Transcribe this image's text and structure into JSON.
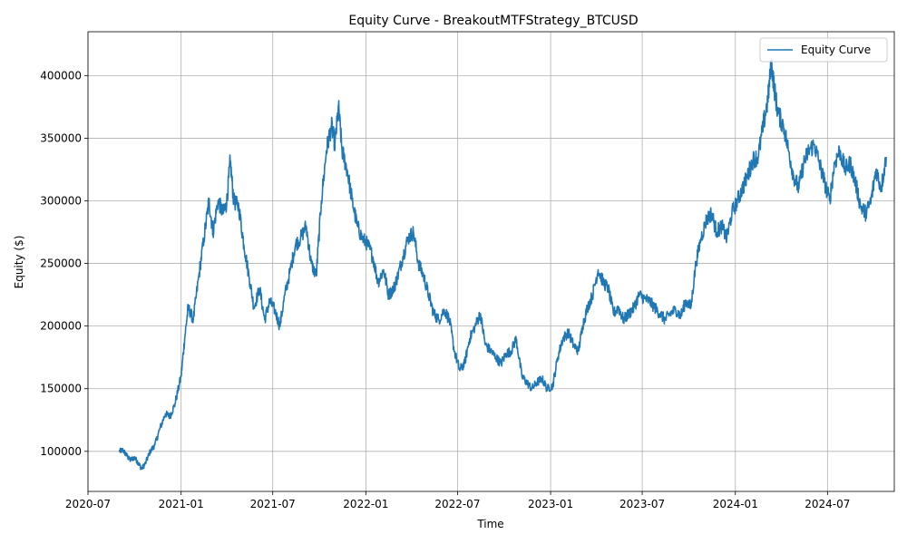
{
  "chart_data": {
    "type": "line",
    "title": "Equity Curve - BreakoutMTFStrategy_BTCUSD",
    "xlabel": "Time",
    "ylabel": "Equity ($)",
    "x_axis_type": "date",
    "xlim": [
      "2020-07-01",
      "2024-11-10"
    ],
    "ylim": [
      68000,
      435000
    ],
    "x_ticks": [
      "2020-07",
      "2021-01",
      "2021-07",
      "2022-01",
      "2022-07",
      "2023-01",
      "2023-07",
      "2024-01",
      "2024-07"
    ],
    "y_ticks": [
      100000,
      150000,
      200000,
      250000,
      300000,
      350000,
      400000
    ],
    "y_tick_labels": [
      "100000",
      "150000",
      "200000",
      "250000",
      "300000",
      "350000",
      "400000"
    ],
    "grid": true,
    "legend": "top-right",
    "colors": {
      "series": "#1f77b4",
      "grid": "#b0b0b0",
      "frame": "#000000"
    },
    "series": [
      {
        "name": "Equity Curve",
        "x": [
          "2020-09-01",
          "2020-09-08",
          "2020-09-15",
          "2020-09-22",
          "2020-10-01",
          "2020-10-08",
          "2020-10-15",
          "2020-10-22",
          "2020-11-01",
          "2020-11-10",
          "2020-11-20",
          "2020-12-01",
          "2020-12-10",
          "2020-12-20",
          "2021-01-01",
          "2021-01-08",
          "2021-01-15",
          "2021-01-25",
          "2021-02-05",
          "2021-02-15",
          "2021-02-25",
          "2021-03-05",
          "2021-03-15",
          "2021-03-25",
          "2021-04-01",
          "2021-04-08",
          "2021-04-15",
          "2021-04-25",
          "2021-05-05",
          "2021-05-15",
          "2021-05-25",
          "2021-06-05",
          "2021-06-15",
          "2021-06-25",
          "2021-07-05",
          "2021-07-15",
          "2021-07-25",
          "2021-08-05",
          "2021-08-15",
          "2021-08-25",
          "2021-09-05",
          "2021-09-15",
          "2021-09-25",
          "2021-10-05",
          "2021-10-15",
          "2021-10-25",
          "2021-11-01",
          "2021-11-08",
          "2021-11-15",
          "2021-11-25",
          "2021-12-05",
          "2021-12-15",
          "2021-12-25",
          "2022-01-05",
          "2022-01-15",
          "2022-01-25",
          "2022-02-05",
          "2022-02-15",
          "2022-02-25",
          "2022-03-05",
          "2022-03-15",
          "2022-03-25",
          "2022-04-05",
          "2022-04-15",
          "2022-04-25",
          "2022-05-05",
          "2022-05-15",
          "2022-05-25",
          "2022-06-05",
          "2022-06-15",
          "2022-06-25",
          "2022-07-05",
          "2022-07-15",
          "2022-07-25",
          "2022-08-05",
          "2022-08-15",
          "2022-08-25",
          "2022-09-05",
          "2022-09-15",
          "2022-09-25",
          "2022-10-05",
          "2022-10-15",
          "2022-10-25",
          "2022-11-05",
          "2022-11-15",
          "2022-11-25",
          "2022-12-05",
          "2022-12-15",
          "2022-12-25",
          "2023-01-05",
          "2023-01-15",
          "2023-01-25",
          "2023-02-05",
          "2023-02-15",
          "2023-02-25",
          "2023-03-05",
          "2023-03-15",
          "2023-03-25",
          "2023-04-05",
          "2023-04-15",
          "2023-04-25",
          "2023-05-05",
          "2023-05-15",
          "2023-05-25",
          "2023-06-05",
          "2023-06-15",
          "2023-06-25",
          "2023-07-05",
          "2023-07-15",
          "2023-07-25",
          "2023-08-05",
          "2023-08-15",
          "2023-08-25",
          "2023-09-05",
          "2023-09-15",
          "2023-09-25",
          "2023-10-05",
          "2023-10-15",
          "2023-10-25",
          "2023-11-05",
          "2023-11-15",
          "2023-11-25",
          "2023-12-05",
          "2023-12-15",
          "2023-12-25",
          "2024-01-05",
          "2024-01-15",
          "2024-01-25",
          "2024-02-05",
          "2024-02-15",
          "2024-02-25",
          "2024-03-05",
          "2024-03-12",
          "2024-03-18",
          "2024-03-25",
          "2024-04-05",
          "2024-04-15",
          "2024-04-25",
          "2024-05-05",
          "2024-05-15",
          "2024-05-25",
          "2024-06-05",
          "2024-06-15",
          "2024-06-25",
          "2024-07-05",
          "2024-07-15",
          "2024-07-25",
          "2024-08-05",
          "2024-08-15",
          "2024-08-25",
          "2024-09-05",
          "2024-09-15",
          "2024-09-25",
          "2024-10-05",
          "2024-10-15",
          "2024-10-25"
        ],
        "y": [
          100000,
          101000,
          97000,
          93000,
          95000,
          91000,
          86000,
          90000,
          100000,
          105000,
          118000,
          130000,
          128000,
          138000,
          160000,
          190000,
          215000,
          205000,
          240000,
          270000,
          300000,
          275000,
          300000,
          290000,
          298000,
          332000,
          300000,
          295000,
          265000,
          240000,
          215000,
          230000,
          205000,
          220000,
          213000,
          200000,
          225000,
          245000,
          265000,
          270000,
          280000,
          250000,
          240000,
          300000,
          340000,
          360000,
          345000,
          375000,
          340000,
          325000,
          300000,
          280000,
          270000,
          265000,
          255000,
          235000,
          245000,
          225000,
          230000,
          240000,
          255000,
          270000,
          275000,
          250000,
          240000,
          225000,
          210000,
          205000,
          213000,
          205000,
          180000,
          165000,
          170000,
          190000,
          200000,
          210000,
          185000,
          180000,
          175000,
          170000,
          178000,
          180000,
          190000,
          160000,
          155000,
          150000,
          155000,
          158000,
          150000,
          152000,
          175000,
          190000,
          195000,
          185000,
          180000,
          200000,
          215000,
          225000,
          245000,
          235000,
          230000,
          210000,
          215000,
          205000,
          210000,
          215000,
          225000,
          222000,
          220000,
          215000,
          210000,
          205000,
          210000,
          213000,
          208000,
          220000,
          215000,
          250000,
          270000,
          285000,
          290000,
          275000,
          280000,
          270000,
          290000,
          300000,
          310000,
          320000,
          333000,
          335000,
          360000,
          380000,
          410000,
          390000,
          370000,
          360000,
          340000,
          320000,
          310000,
          330000,
          340000,
          345000,
          330000,
          315000,
          300000,
          330000,
          340000,
          325000,
          330000,
          315000,
          295000,
          290000,
          300000,
          325000,
          310000,
          335000
        ]
      }
    ]
  }
}
